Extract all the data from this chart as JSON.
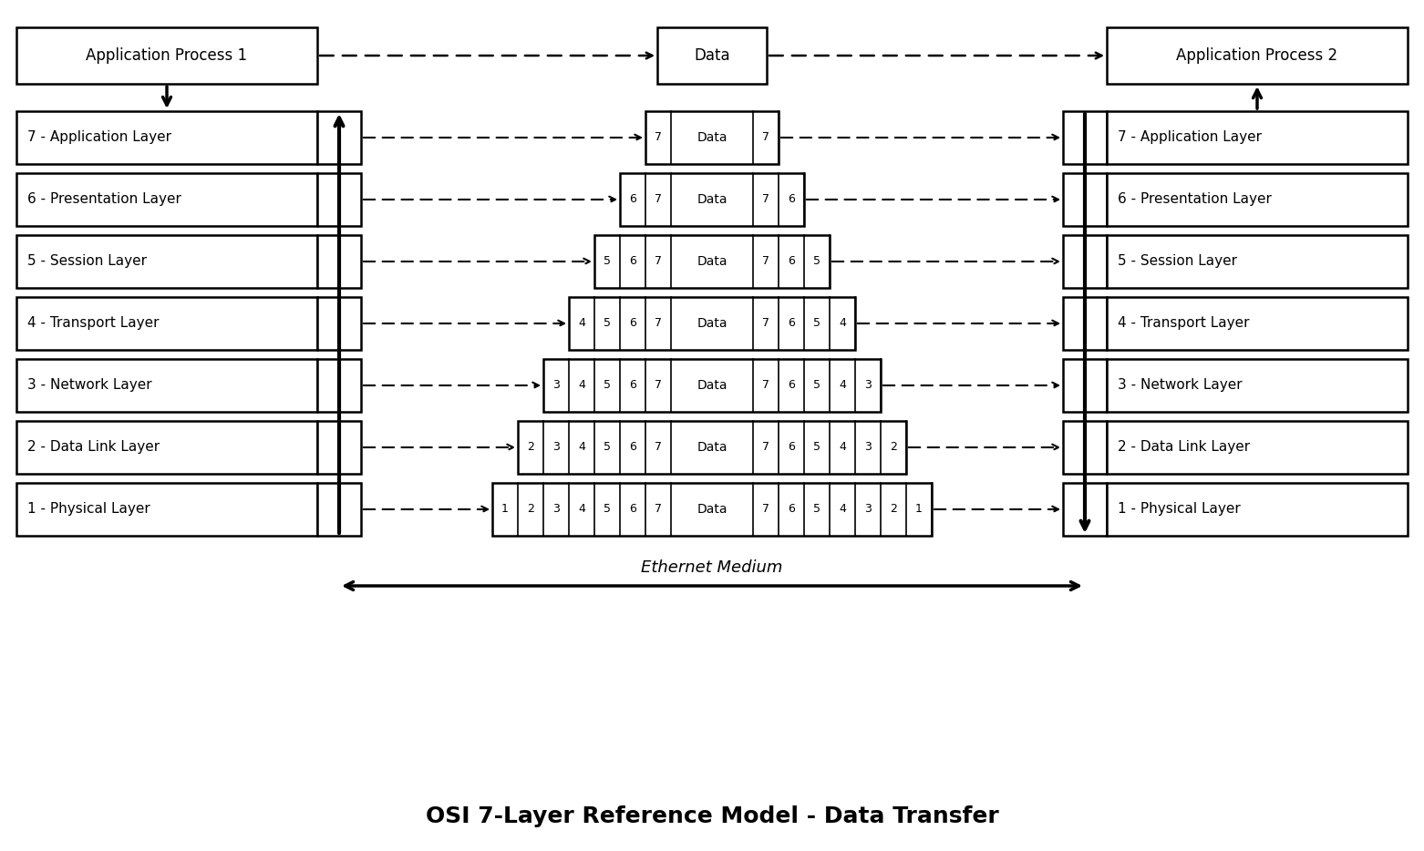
{
  "title": "OSI 7-Layer Reference Model - Data Transfer",
  "layers": [
    "7 - Application Layer",
    "6 - Presentation Layer",
    "5 - Session Layer",
    "4 - Transport Layer",
    "3 - Network Layer",
    "2 - Data Link Layer",
    "1 - Physical Layer"
  ],
  "layer_numbers": [
    7,
    6,
    5,
    4,
    3,
    2,
    1
  ],
  "app_process_1": "Application Process 1",
  "app_process_2": "Application Process 2",
  "data_label": "Data",
  "ethernet_label": "Ethernet Medium",
  "bg_color": "#ffffff"
}
